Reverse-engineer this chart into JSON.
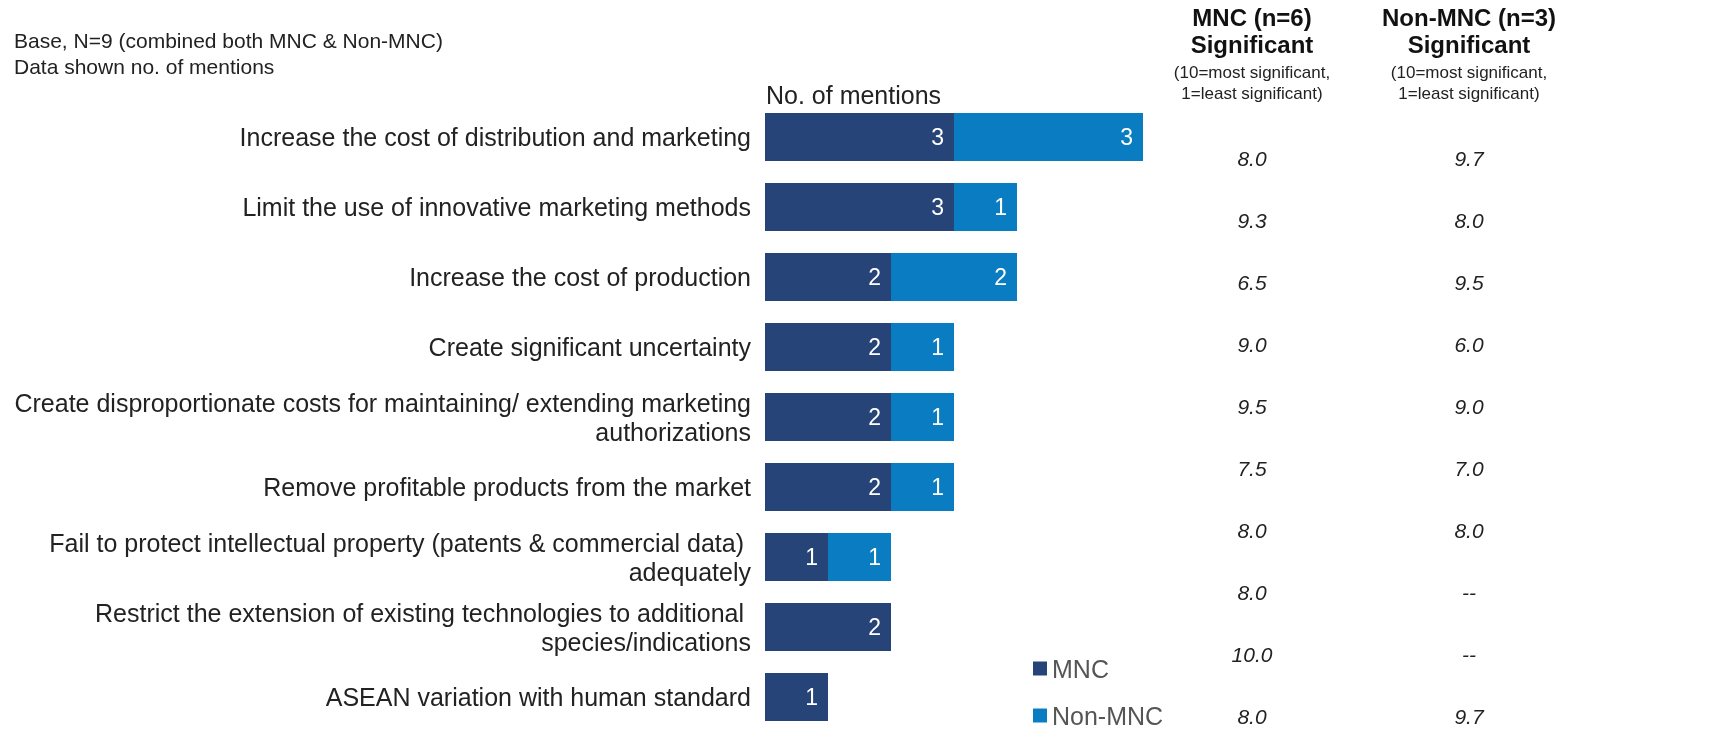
{
  "chart_data": {
    "type": "bar",
    "orientation": "horizontal",
    "stacked": true,
    "data_labels": true,
    "legend": "bottom",
    "xlabel": "No. of mentions",
    "categories": [
      "Increase the cost of distribution and marketing",
      "Limit the use of innovative marketing methods",
      "Increase the cost of production",
      "Create significant uncertainty",
      "Create disproportionate costs for maintaining/ extending marketing authorizations",
      "Remove profitable products from the market",
      "Fail to protect intellectual property (patents & commercial data) adequately",
      "Restrict the extension of existing technologies to additional species/indications",
      "ASEAN variation with human standard"
    ],
    "series": [
      {
        "name": "MNC",
        "color": "#264478",
        "values": [
          3,
          3,
          2,
          2,
          2,
          2,
          1,
          2,
          1
        ]
      },
      {
        "name": "Non-MNC",
        "color": "#0a7cc1",
        "values": [
          3,
          1,
          2,
          1,
          1,
          1,
          1,
          null,
          null
        ]
      }
    ],
    "annotations": [
      "Base, N=9 (combined both MNC & Non-MNC)",
      "Data shown no. of mentions",
      "MNC (n=6)\nSignificant",
      "(10=most significant,\n1=least significant)",
      "Non-MNC (n=3)\nSignificant",
      "(10=most significant,\n1=least significant)",
      "8.0",
      "9.3",
      "6.5",
      "9.0",
      "9.5",
      "7.5",
      "8.0",
      "8.0",
      "10.0",
      "8.0",
      "9.7",
      "8.0",
      "9.5",
      "6.0",
      "9.0",
      "7.0",
      "8.0",
      "--",
      "--",
      "9.7"
    ]
  }
}
